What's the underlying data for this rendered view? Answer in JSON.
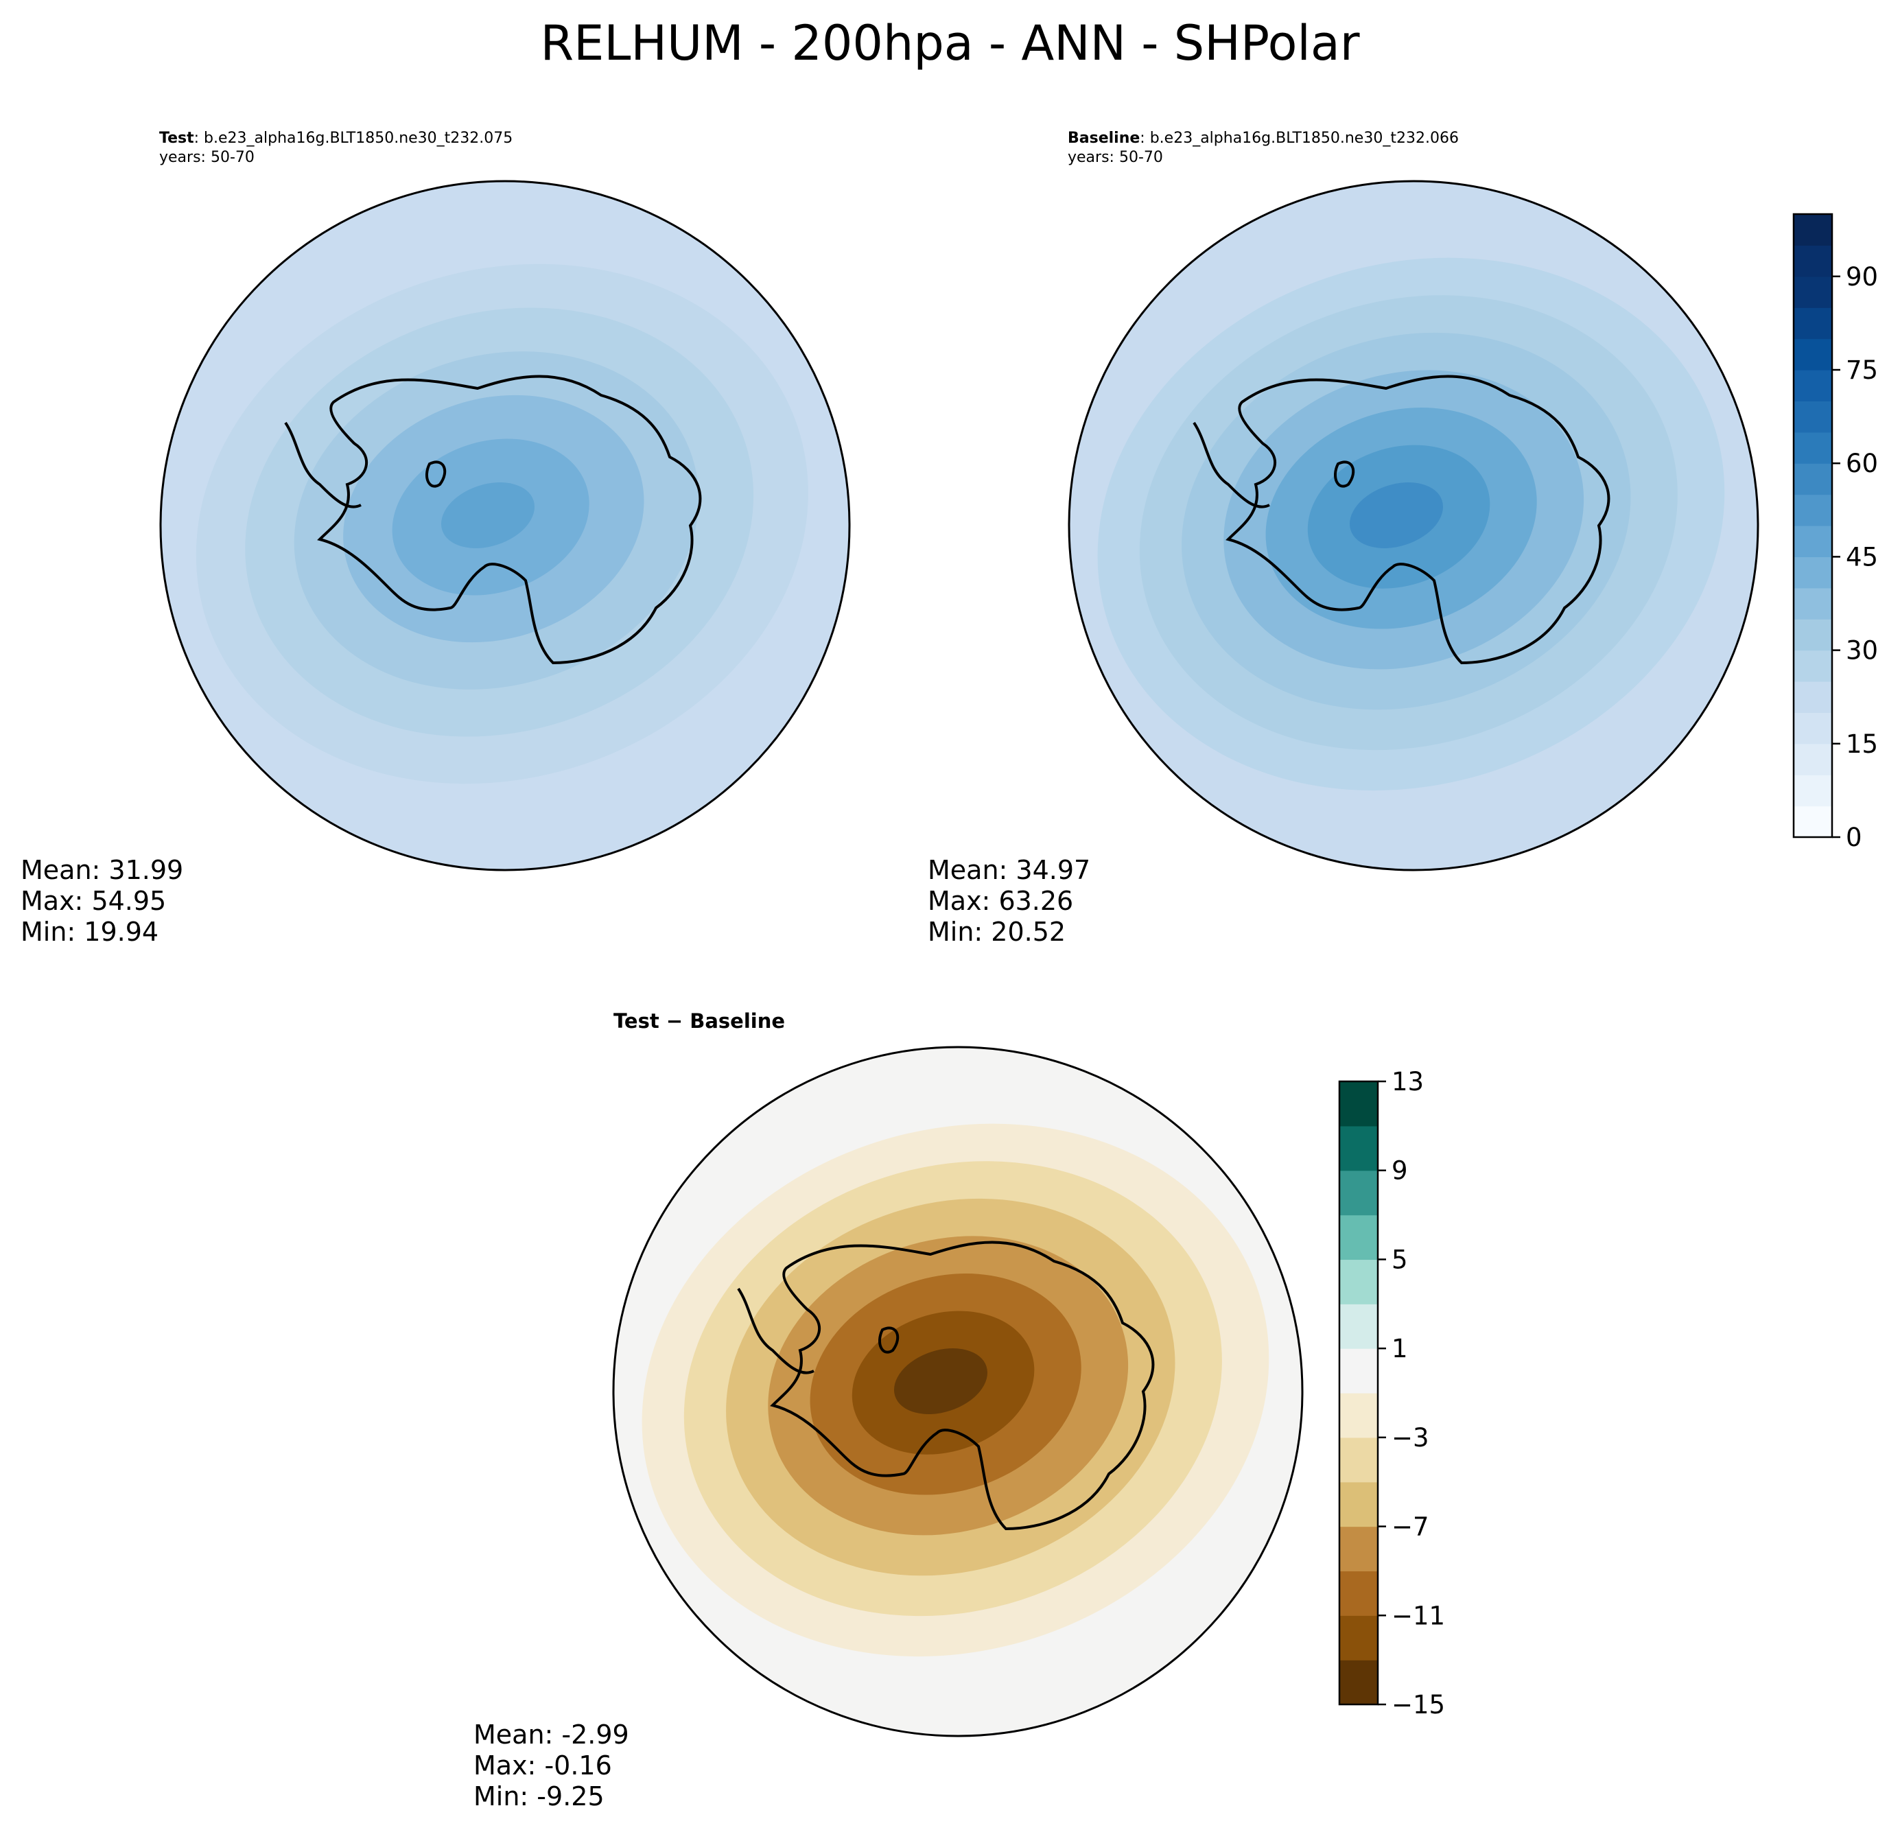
{
  "figure": {
    "title": "RELHUM - 200hpa - ANN - SHPolar"
  },
  "panels": {
    "test": {
      "label": "Test",
      "case": ": b.e23_alpha16g.BLT1850.ne30_t232.075",
      "years": "years: 50-70",
      "stats": {
        "mean": "Mean: 31.99",
        "max": "Max: 54.95",
        "min": "Min: 19.94"
      }
    },
    "baseline": {
      "label": "Baseline",
      "case": ": b.e23_alpha16g.BLT1850.ne30_t232.066",
      "years": "years: 50-70",
      "stats": {
        "mean": "Mean: 34.97",
        "max": "Max: 63.26",
        "min": "Min: 20.52"
      }
    },
    "diff": {
      "title": "Test − Baseline",
      "stats": {
        "mean": "Mean: -2.99",
        "max": "Max: -0.16",
        "min": "Min: -9.25"
      }
    }
  },
  "chart_data": [
    {
      "type": "heatmap",
      "name": "Test",
      "projection": "south-polar-stereographic",
      "mean": 31.99,
      "max": 54.95,
      "min": 19.94,
      "colormap": "Blues"
    },
    {
      "type": "heatmap",
      "name": "Baseline",
      "projection": "south-polar-stereographic",
      "mean": 34.97,
      "max": 63.26,
      "min": 20.52,
      "colormap": "Blues"
    },
    {
      "type": "heatmap",
      "name": "Test − Baseline",
      "projection": "south-polar-stereographic",
      "mean": -2.99,
      "max": -0.16,
      "min": -9.25,
      "colormap": "BrBG"
    }
  ],
  "colorbars": {
    "main": {
      "range": [
        0,
        100
      ],
      "ticks": [
        "0",
        "15",
        "30",
        "45",
        "60",
        "75",
        "90"
      ],
      "tick_values": [
        0,
        15,
        30,
        45,
        60,
        75,
        90
      ],
      "colors": [
        "#f7fbff",
        "#eaf3fb",
        "#deebf7",
        "#d2e3f3",
        "#c6dbef",
        "#b5d4e9",
        "#a4cbe3",
        "#8fbfdf",
        "#78b2d9",
        "#63a5d3",
        "#4f97cb",
        "#3d89c2",
        "#2b7bba",
        "#1f6db1",
        "#1460a8",
        "#08529a",
        "#084488",
        "#083674",
        "#08306b",
        "#082759"
      ]
    },
    "diff": {
      "range": [
        -15,
        13
      ],
      "ticks": [
        "−15",
        "−11",
        "−7",
        "−3",
        "1",
        "5",
        "9",
        "13"
      ],
      "tick_values": [
        -15,
        -11,
        -7,
        -3,
        1,
        5,
        9,
        13
      ],
      "colors": [
        "#5e3505",
        "#8a510a",
        "#a96920",
        "#c38d44",
        "#dcbf77",
        "#ecd9a5",
        "#f5ebd0",
        "#f4f4f4",
        "#d4ecea",
        "#a2dbd1",
        "#66bdb1",
        "#35978f",
        "#0b6e64",
        "#004a3e"
      ]
    }
  },
  "colors": {
    "test_shades": [
      "#c9dcf0",
      "#c0d8ec",
      "#b4d3e8",
      "#a6cbe4",
      "#8dbddf",
      "#74b0d9",
      "#5fa4d2"
    ],
    "baseline_shades": [
      "#c8dbef",
      "#b9d6eb",
      "#aed0e6",
      "#a1c9e3",
      "#89bbdd",
      "#6aabd5",
      "#529dcd",
      "#3f8dc6"
    ],
    "diff_shades": [
      "#f4f4f3",
      "#f5ebd5",
      "#eedcaa",
      "#e0c17c",
      "#c9964c",
      "#ad6e23",
      "#8c520b",
      "#643a08"
    ],
    "land_outline": "#000000"
  }
}
